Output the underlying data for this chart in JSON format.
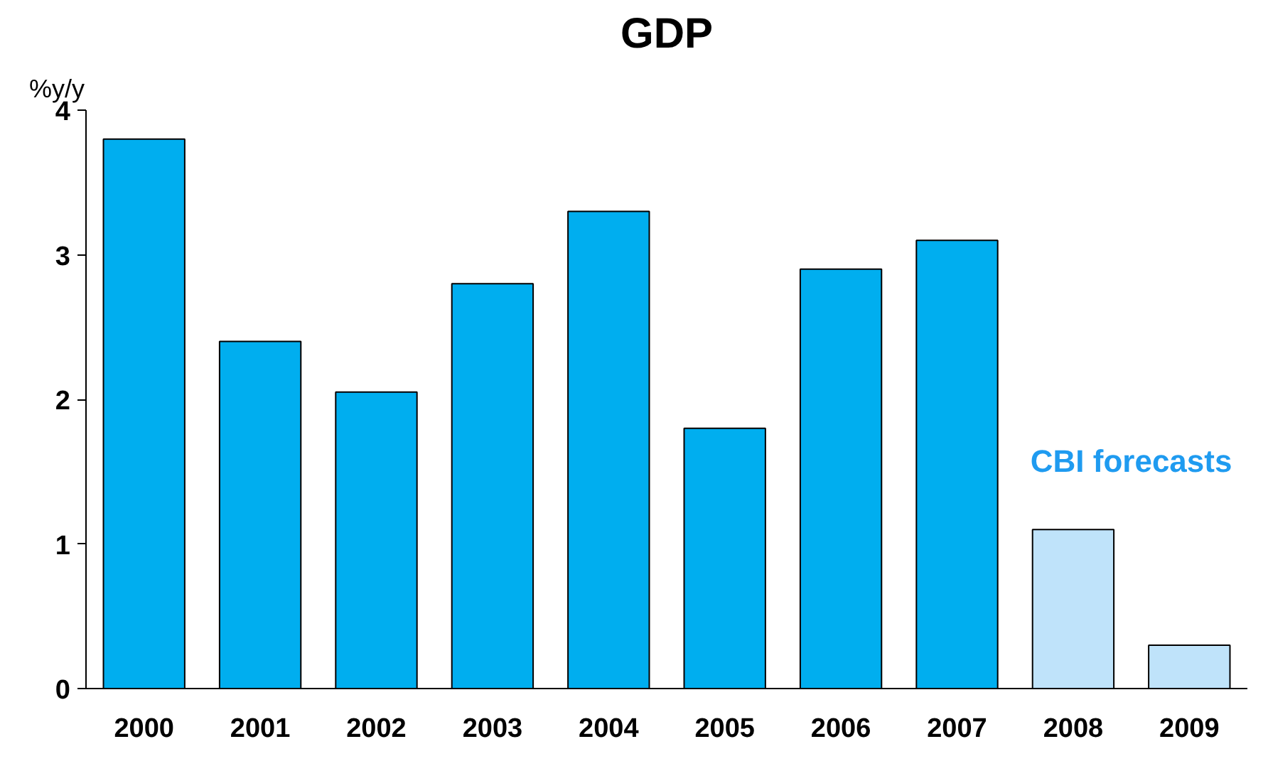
{
  "chart_data": {
    "type": "bar",
    "title": "GDP",
    "ylabel": "%y/y",
    "categories": [
      "2000",
      "2001",
      "2002",
      "2003",
      "2004",
      "2005",
      "2006",
      "2007",
      "2008",
      "2009"
    ],
    "values": [
      3.8,
      2.4,
      2.05,
      2.8,
      3.3,
      1.8,
      2.9,
      3.1,
      1.1,
      0.3
    ],
    "colors": [
      "#00aeef",
      "#00aeef",
      "#00aeef",
      "#00aeef",
      "#00aeef",
      "#00aeef",
      "#00aeef",
      "#00aeef",
      "#bfe3fa",
      "#bfe3fa"
    ],
    "ylim": [
      0,
      4
    ],
    "yticks": [
      0,
      1,
      2,
      3,
      4
    ],
    "grid": false,
    "annotations": [
      "CBI forecasts"
    ]
  }
}
